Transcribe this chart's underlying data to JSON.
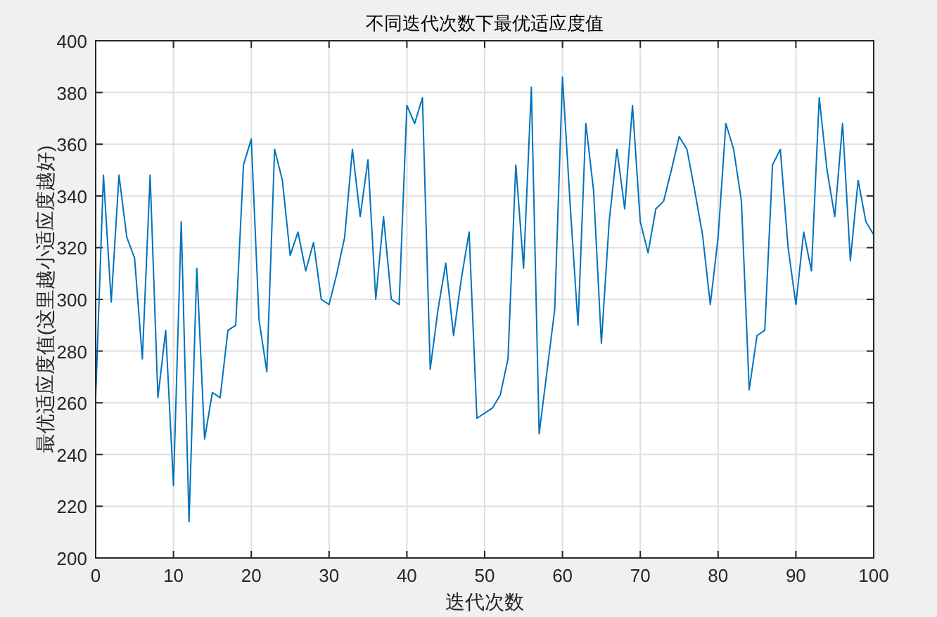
{
  "chart_data": {
    "type": "line",
    "title": "不同迭代次数下最优适应度值",
    "xlabel": "迭代次数",
    "ylabel": "最优适应度值(这里越小适应度越好)",
    "x": [
      0,
      1,
      2,
      3,
      4,
      5,
      6,
      7,
      8,
      9,
      10,
      11,
      12,
      13,
      14,
      15,
      16,
      17,
      18,
      19,
      20,
      21,
      22,
      23,
      24,
      25,
      26,
      27,
      28,
      29,
      30,
      31,
      32,
      33,
      34,
      35,
      36,
      37,
      38,
      39,
      40,
      41,
      42,
      43,
      44,
      45,
      46,
      47,
      48,
      49,
      50,
      51,
      52,
      53,
      54,
      55,
      56,
      57,
      58,
      59,
      60,
      61,
      62,
      63,
      64,
      65,
      66,
      67,
      68,
      69,
      70,
      71,
      72,
      73,
      74,
      75,
      76,
      77,
      78,
      79,
      80,
      81,
      82,
      83,
      84,
      85,
      86,
      87,
      88,
      89,
      90,
      91,
      92,
      93,
      94,
      95,
      96,
      97,
      98,
      99,
      100
    ],
    "series": [
      {
        "color": "#0072bd",
        "values": [
          262,
          348,
          299,
          348,
          324,
          316,
          277,
          348,
          262,
          288,
          228,
          330,
          214,
          312,
          246,
          264,
          262,
          288,
          290,
          352,
          362,
          292,
          272,
          358,
          346,
          317,
          326,
          311,
          322,
          300,
          298,
          310,
          324,
          358,
          332,
          354,
          300,
          332,
          300,
          298,
          375,
          368,
          378,
          273,
          296,
          314,
          286,
          308,
          326,
          254,
          256,
          258,
          263,
          277,
          352,
          312,
          382,
          248,
          272,
          296,
          386,
          336,
          290,
          368,
          342,
          283,
          330,
          358,
          335,
          375,
          330,
          318,
          335,
          338,
          350,
          363,
          358,
          342,
          325,
          298,
          324,
          368,
          358,
          338,
          265,
          286,
          288,
          352,
          358,
          320,
          298,
          326,
          311,
          378,
          350,
          332,
          368,
          315,
          346,
          330,
          325
        ]
      }
    ],
    "xlim": [
      0,
      100
    ],
    "xticks": [
      0,
      10,
      20,
      30,
      40,
      50,
      60,
      70,
      80,
      90,
      100
    ],
    "ylim": [
      200,
      400
    ],
    "yticks": [
      200,
      220,
      240,
      260,
      280,
      300,
      320,
      340,
      360,
      380,
      400
    ],
    "grid": true
  }
}
